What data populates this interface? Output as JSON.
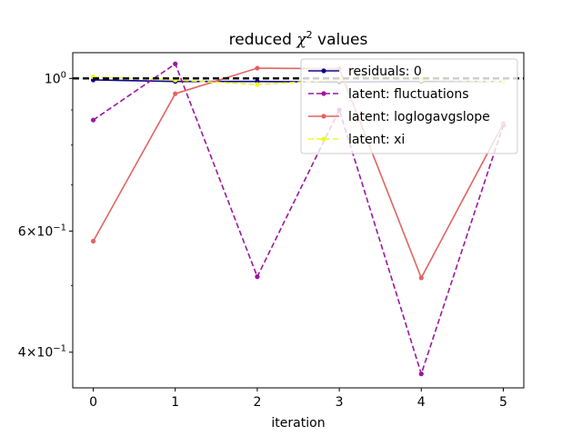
{
  "chart_data": {
    "type": "line",
    "title_prefix": "reduced ",
    "title_symbol": "χ",
    "title_superscript": "2",
    "title_suffix": " values",
    "xlabel": "iteration",
    "ylabel": "",
    "yscale": "log",
    "x": [
      0,
      1,
      2,
      3,
      4,
      5
    ],
    "xlim": [
      -0.25,
      5.25
    ],
    "ylim": [
      0.355,
      1.09
    ],
    "grid": false,
    "legend_position": "top-right",
    "x_ticks": [
      "0",
      "1",
      "2",
      "3",
      "4",
      "5"
    ],
    "y_ticks": [
      {
        "value": 1.0,
        "mantissa": "",
        "exponent": "0",
        "base": "10"
      },
      {
        "value": 0.6,
        "mantissa": "6",
        "exponent": "−1",
        "base": "10"
      },
      {
        "value": 0.4,
        "mantissa": "4",
        "exponent": "−1",
        "base": "10"
      }
    ],
    "y_minor_ticks": [
      0.5,
      0.7,
      0.8,
      0.9
    ],
    "reference_line": {
      "y": 1.0,
      "color": "#000000",
      "style": "dashed"
    },
    "series": [
      {
        "name": "residuals: 0",
        "values": [
          0.995,
          0.99,
          0.99,
          0.988,
          0.99,
          0.99
        ],
        "color": "#0d0887",
        "style": "solid"
      },
      {
        "name": "latent: fluctuations",
        "values": [
          0.87,
          1.05,
          0.515,
          0.9,
          0.372,
          0.855
        ],
        "color": "#9c179e",
        "style": "dashed"
      },
      {
        "name": "latent: loglogavgslope",
        "values": [
          0.58,
          0.95,
          1.035,
          1.033,
          0.513,
          0.86
        ],
        "color": "#e16462",
        "style": "solid"
      },
      {
        "name": "latent: xi",
        "values": [
          1.005,
          0.995,
          0.98,
          0.995,
          0.995,
          0.99
        ],
        "color": "#f0f921",
        "style": "dashed"
      }
    ]
  }
}
